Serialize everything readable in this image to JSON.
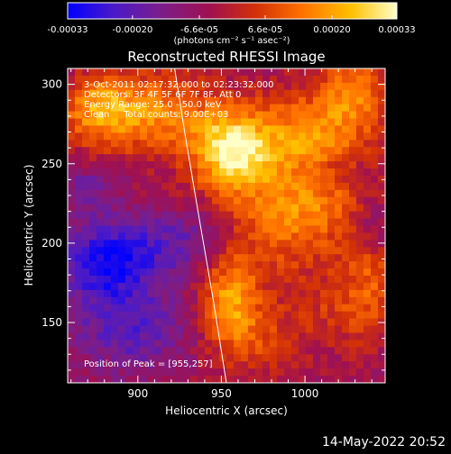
{
  "colorbar": {
    "ticks": [
      "-0.00033",
      "-0.00020",
      "-6.6e-05",
      "6.6e-05",
      "0.00020",
      "0.00033"
    ],
    "tick_values": [
      -0.00033,
      -0.0002,
      -6.6e-05,
      6.6e-05,
      0.0002,
      0.00033
    ],
    "range": [
      -0.00033,
      0.00033
    ],
    "units": "(photons cm⁻² s⁻¹ asec⁻²)"
  },
  "plot": {
    "title": "Reconstructed RHESSI Image",
    "info_lines": [
      "3-Oct-2011 02:17:32.000 to 02:23:32.000",
      "Detectors: 3F 4F 5F 6F 7F 8F, Att 0",
      "Energy Range: 25.0 - 50.0 keV",
      "Clean     Total counts: 9.00E+03"
    ],
    "peak_label": "Position of Peak = [955,257]"
  },
  "footer": {
    "timestamp": "14-May-2022 20:52"
  },
  "colors": {
    "background": "#000000",
    "foreground": "#ffffff",
    "colormap": [
      "#0000ff",
      "#4b1ac8",
      "#7a1e8c",
      "#a01050",
      "#d23008",
      "#ff7000",
      "#ffc000",
      "#ffffc8"
    ]
  },
  "chart_data": {
    "type": "heatmap",
    "title": "Reconstructed RHESSI Image",
    "xlabel": "Heliocentric X (arcsec)",
    "ylabel": "Heliocentric Y (arcsec)",
    "xlim": [
      858,
      1048
    ],
    "ylim": [
      112,
      310
    ],
    "x_ticks": [
      900,
      950,
      1000
    ],
    "y_ticks": [
      150,
      200,
      250,
      300
    ],
    "value_range": [
      -0.00033,
      0.00033
    ],
    "peak": [
      955,
      257
    ],
    "limb_curve": {
      "x": [
        922,
        928,
        936,
        945,
        953
      ],
      "y": [
        310,
        270,
        220,
        165,
        112
      ]
    },
    "grid": false,
    "legend": "colorbar-top",
    "sources": [
      {
        "x": 955,
        "y": 257,
        "sx": 16,
        "sy": 18,
        "amp": 0.00033
      },
      {
        "x": 1000,
        "y": 265,
        "sx": 26,
        "sy": 20,
        "amp": 0.00022
      },
      {
        "x": 905,
        "y": 282,
        "sx": 28,
        "sy": 18,
        "amp": 0.00022
      },
      {
        "x": 1030,
        "y": 295,
        "sx": 16,
        "sy": 16,
        "amp": 0.00018
      },
      {
        "x": 875,
        "y": 285,
        "sx": 14,
        "sy": 14,
        "amp": 0.00016
      },
      {
        "x": 955,
        "y": 165,
        "sx": 12,
        "sy": 22,
        "amp": 0.00024
      },
      {
        "x": 985,
        "y": 215,
        "sx": 20,
        "sy": 24,
        "amp": 0.00018
      },
      {
        "x": 1015,
        "y": 230,
        "sx": 16,
        "sy": 20,
        "amp": 0.00014
      },
      {
        "x": 1040,
        "y": 180,
        "sx": 14,
        "sy": 26,
        "amp": 0.00012
      },
      {
        "x": 975,
        "y": 140,
        "sx": 18,
        "sy": 16,
        "amp": 0.0001
      },
      {
        "x": 1020,
        "y": 160,
        "sx": 20,
        "sy": 18,
        "amp": 8e-05
      },
      {
        "x": 880,
        "y": 188,
        "sx": 22,
        "sy": 18,
        "amp": -0.00024
      },
      {
        "x": 895,
        "y": 145,
        "sx": 24,
        "sy": 20,
        "amp": -0.00016
      },
      {
        "x": 925,
        "y": 200,
        "sx": 24,
        "sy": 14,
        "amp": -0.00012
      },
      {
        "x": 1015,
        "y": 245,
        "sx": 16,
        "sy": 12,
        "amp": -0.00012
      },
      {
        "x": 870,
        "y": 235,
        "sx": 12,
        "sy": 10,
        "amp": -0.00012
      },
      {
        "x": 1040,
        "y": 210,
        "sx": 10,
        "sy": 12,
        "amp": -0.0001
      }
    ]
  }
}
